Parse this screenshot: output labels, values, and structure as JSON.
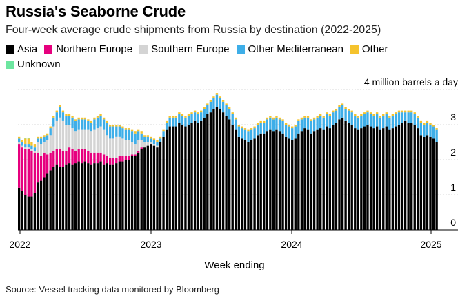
{
  "chart_data": {
    "type": "bar",
    "stacked": true,
    "title": "Russia's Seaborne Crude",
    "subtitle": "Four-week average crude shipments from Russia by destination (2022-2025)",
    "xlabel": "Week ending",
    "ylabel": "4 million barrels a day",
    "ylim": [
      0,
      4
    ],
    "y_ticks": [
      "0",
      "1",
      "2",
      "3"
    ],
    "x_ticks": [
      "2022",
      "2023",
      "2024",
      "2025"
    ],
    "grid": true,
    "legend_position": "top",
    "series": [
      {
        "name": "Asia",
        "color": "#000000",
        "values": [
          1.2,
          1.1,
          1.0,
          0.95,
          0.95,
          1.05,
          1.35,
          1.4,
          1.5,
          1.6,
          1.7,
          1.8,
          1.85,
          1.8,
          1.8,
          1.85,
          1.9,
          1.85,
          1.9,
          1.95,
          1.9,
          1.95,
          1.9,
          1.85,
          1.9,
          1.9,
          1.95,
          1.85,
          1.9,
          1.85,
          1.85,
          1.9,
          1.95,
          1.95,
          2.0,
          2.0,
          2.1,
          2.1,
          2.2,
          2.3,
          2.35,
          2.4,
          2.45,
          2.4,
          2.35,
          2.5,
          2.65,
          2.85,
          2.95,
          2.95,
          2.95,
          3.05,
          3.0,
          2.95,
          3.0,
          3.05,
          3.1,
          3.05,
          3.1,
          3.2,
          3.3,
          3.35,
          3.45,
          3.5,
          3.45,
          3.35,
          3.25,
          3.15,
          3.0,
          2.85,
          2.65,
          2.6,
          2.55,
          2.5,
          2.55,
          2.6,
          2.7,
          2.75,
          2.75,
          2.8,
          2.85,
          2.8,
          2.85,
          2.8,
          2.75,
          2.65,
          2.6,
          2.55,
          2.6,
          2.75,
          2.8,
          2.9,
          2.85,
          2.75,
          2.8,
          2.85,
          2.9,
          2.85,
          2.95,
          2.9,
          3.0,
          3.05,
          3.15,
          3.2,
          3.1,
          3.05,
          3.0,
          2.9,
          2.85,
          2.9,
          2.95,
          3.0,
          2.95,
          2.9,
          2.95,
          2.85,
          2.9,
          2.95,
          2.85,
          2.9,
          2.95,
          3.0,
          3.05,
          3.1,
          3.05,
          3.05,
          3.0,
          2.9,
          2.7,
          2.65,
          2.7,
          2.65,
          2.6,
          2.5
        ]
      },
      {
        "name": "Northern Europe",
        "color": "#e6007e",
        "values": [
          1.25,
          1.25,
          1.3,
          1.35,
          1.3,
          1.15,
          0.85,
          0.7,
          0.7,
          0.55,
          0.5,
          0.45,
          0.45,
          0.5,
          0.45,
          0.4,
          0.45,
          0.45,
          0.35,
          0.35,
          0.4,
          0.35,
          0.35,
          0.35,
          0.3,
          0.3,
          0.25,
          0.3,
          0.2,
          0.2,
          0.2,
          0.15,
          0.15,
          0.15,
          0.1,
          0.1,
          0.05,
          0.05,
          0.05,
          0.05,
          0,
          0,
          0,
          0,
          0,
          0,
          0,
          0,
          0,
          0,
          0,
          0,
          0,
          0,
          0,
          0,
          0,
          0,
          0,
          0,
          0,
          0,
          0,
          0,
          0,
          0,
          0,
          0,
          0,
          0,
          0,
          0,
          0,
          0,
          0,
          0,
          0,
          0,
          0,
          0,
          0,
          0,
          0,
          0,
          0,
          0,
          0,
          0,
          0,
          0,
          0,
          0,
          0,
          0,
          0,
          0,
          0,
          0,
          0,
          0,
          0,
          0,
          0,
          0,
          0,
          0,
          0,
          0,
          0,
          0,
          0,
          0,
          0,
          0,
          0,
          0,
          0,
          0,
          0,
          0,
          0,
          0,
          0,
          0,
          0,
          0,
          0,
          0,
          0,
          0,
          0,
          0,
          0,
          0
        ]
      },
      {
        "name": "Southern Europe",
        "color": "#d4d4d4",
        "values": [
          0.05,
          0.05,
          0.05,
          0.05,
          0.05,
          0.05,
          0.3,
          0.35,
          0.3,
          0.4,
          0.5,
          0.7,
          0.8,
          0.9,
          0.85,
          0.75,
          0.65,
          0.6,
          0.55,
          0.55,
          0.55,
          0.55,
          0.6,
          0.6,
          0.65,
          0.7,
          0.75,
          0.7,
          0.6,
          0.55,
          0.55,
          0.6,
          0.55,
          0.5,
          0.45,
          0.45,
          0.35,
          0.3,
          0.3,
          0.2,
          0.15,
          0.1,
          0.05,
          0.05,
          0.05,
          0,
          0,
          0,
          0,
          0,
          0,
          0,
          0,
          0,
          0,
          0,
          0,
          0,
          0,
          0,
          0,
          0,
          0,
          0,
          0,
          0,
          0,
          0,
          0,
          0,
          0,
          0,
          0,
          0,
          0,
          0,
          0,
          0,
          0,
          0,
          0,
          0,
          0,
          0,
          0,
          0,
          0,
          0,
          0,
          0,
          0,
          0,
          0,
          0,
          0,
          0,
          0,
          0,
          0,
          0,
          0,
          0,
          0,
          0,
          0,
          0,
          0,
          0,
          0,
          0,
          0,
          0,
          0,
          0,
          0,
          0,
          0,
          0,
          0,
          0,
          0,
          0,
          0,
          0,
          0,
          0,
          0,
          0,
          0,
          0,
          0,
          0,
          0,
          0
        ]
      },
      {
        "name": "Other Mediterranean",
        "color": "#3eaee8",
        "values": [
          0.1,
          0.1,
          0.1,
          0.1,
          0.1,
          0.1,
          0.1,
          0.15,
          0.15,
          0.15,
          0.2,
          0.25,
          0.25,
          0.3,
          0.25,
          0.25,
          0.25,
          0.3,
          0.3,
          0.3,
          0.3,
          0.3,
          0.25,
          0.25,
          0.3,
          0.3,
          0.3,
          0.3,
          0.35,
          0.35,
          0.35,
          0.3,
          0.3,
          0.3,
          0.3,
          0.3,
          0.3,
          0.3,
          0.25,
          0.2,
          0.15,
          0.15,
          0.1,
          0.1,
          0.1,
          0.1,
          0.15,
          0.2,
          0.25,
          0.25,
          0.25,
          0.25,
          0.25,
          0.25,
          0.25,
          0.25,
          0.25,
          0.25,
          0.25,
          0.25,
          0.25,
          0.3,
          0.3,
          0.35,
          0.3,
          0.3,
          0.3,
          0.3,
          0.3,
          0.3,
          0.3,
          0.3,
          0.3,
          0.3,
          0.3,
          0.3,
          0.3,
          0.3,
          0.3,
          0.35,
          0.35,
          0.35,
          0.35,
          0.35,
          0.35,
          0.35,
          0.35,
          0.35,
          0.35,
          0.35,
          0.35,
          0.3,
          0.35,
          0.35,
          0.35,
          0.35,
          0.35,
          0.35,
          0.35,
          0.35,
          0.35,
          0.35,
          0.35,
          0.35,
          0.35,
          0.35,
          0.35,
          0.35,
          0.35,
          0.35,
          0.35,
          0.35,
          0.35,
          0.35,
          0.35,
          0.35,
          0.35,
          0.35,
          0.35,
          0.35,
          0.35,
          0.35,
          0.3,
          0.25,
          0.3,
          0.3,
          0.3,
          0.3,
          0.35,
          0.35,
          0.35,
          0.35,
          0.35,
          0.35
        ]
      },
      {
        "name": "Other",
        "color": "#f5c32d",
        "values": [
          0.05,
          0.05,
          0.15,
          0.15,
          0.1,
          0.1,
          0.05,
          0.05,
          0.05,
          0.05,
          0.05,
          0.05,
          0.05,
          0.05,
          0.05,
          0.05,
          0.05,
          0.05,
          0.05,
          0.05,
          0.05,
          0.05,
          0.05,
          0.05,
          0.05,
          0.05,
          0.05,
          0.05,
          0.05,
          0.05,
          0.05,
          0.05,
          0.05,
          0.05,
          0.05,
          0.05,
          0.05,
          0.05,
          0.05,
          0.05,
          0.05,
          0.05,
          0.05,
          0.05,
          0.05,
          0.05,
          0.05,
          0.05,
          0.05,
          0.05,
          0.05,
          0.05,
          0.05,
          0.05,
          0.05,
          0.05,
          0.05,
          0.05,
          0.05,
          0.05,
          0.05,
          0.05,
          0.05,
          0.05,
          0.05,
          0.05,
          0.05,
          0.05,
          0.05,
          0.05,
          0.05,
          0.05,
          0.05,
          0.05,
          0.05,
          0.05,
          0.05,
          0.05,
          0.05,
          0.05,
          0.05,
          0.05,
          0.05,
          0.05,
          0.05,
          0.05,
          0.05,
          0.05,
          0.05,
          0.05,
          0.05,
          0.05,
          0.05,
          0.05,
          0.05,
          0.05,
          0.05,
          0.05,
          0.05,
          0.05,
          0.05,
          0.05,
          0.05,
          0.05,
          0.05,
          0.05,
          0.05,
          0.05,
          0.05,
          0.05,
          0.05,
          0.05,
          0.05,
          0.05,
          0.05,
          0.05,
          0.05,
          0.05,
          0.05,
          0.05,
          0.05,
          0.05,
          0.05,
          0.05,
          0.05,
          0.05,
          0.05,
          0.05,
          0.05,
          0.05,
          0.05,
          0.05,
          0.05,
          0.05
        ]
      },
      {
        "name": "Unknown",
        "color": "#6de6a0",
        "values": [
          0,
          0,
          0.02,
          0.02,
          0,
          0,
          0,
          0,
          0,
          0,
          0,
          0,
          0,
          0,
          0,
          0,
          0,
          0,
          0,
          0,
          0,
          0,
          0,
          0,
          0,
          0,
          0,
          0,
          0,
          0,
          0,
          0,
          0,
          0,
          0,
          0,
          0,
          0,
          0,
          0,
          0,
          0,
          0,
          0,
          0,
          0,
          0,
          0,
          0,
          0,
          0,
          0,
          0,
          0,
          0,
          0,
          0,
          0,
          0,
          0,
          0,
          0,
          0,
          0,
          0,
          0,
          0,
          0,
          0,
          0,
          0,
          0,
          0,
          0,
          0,
          0,
          0,
          0,
          0,
          0,
          0,
          0,
          0,
          0,
          0,
          0,
          0,
          0,
          0,
          0,
          0,
          0,
          0,
          0,
          0,
          0,
          0,
          0,
          0,
          0,
          0,
          0,
          0,
          0,
          0,
          0,
          0,
          0,
          0,
          0,
          0,
          0,
          0,
          0,
          0,
          0,
          0,
          0,
          0,
          0,
          0,
          0,
          0,
          0,
          0,
          0,
          0,
          0,
          0,
          0,
          0,
          0,
          0,
          0
        ]
      }
    ],
    "source": "Source: Vessel tracking data monitored by Bloomberg"
  }
}
